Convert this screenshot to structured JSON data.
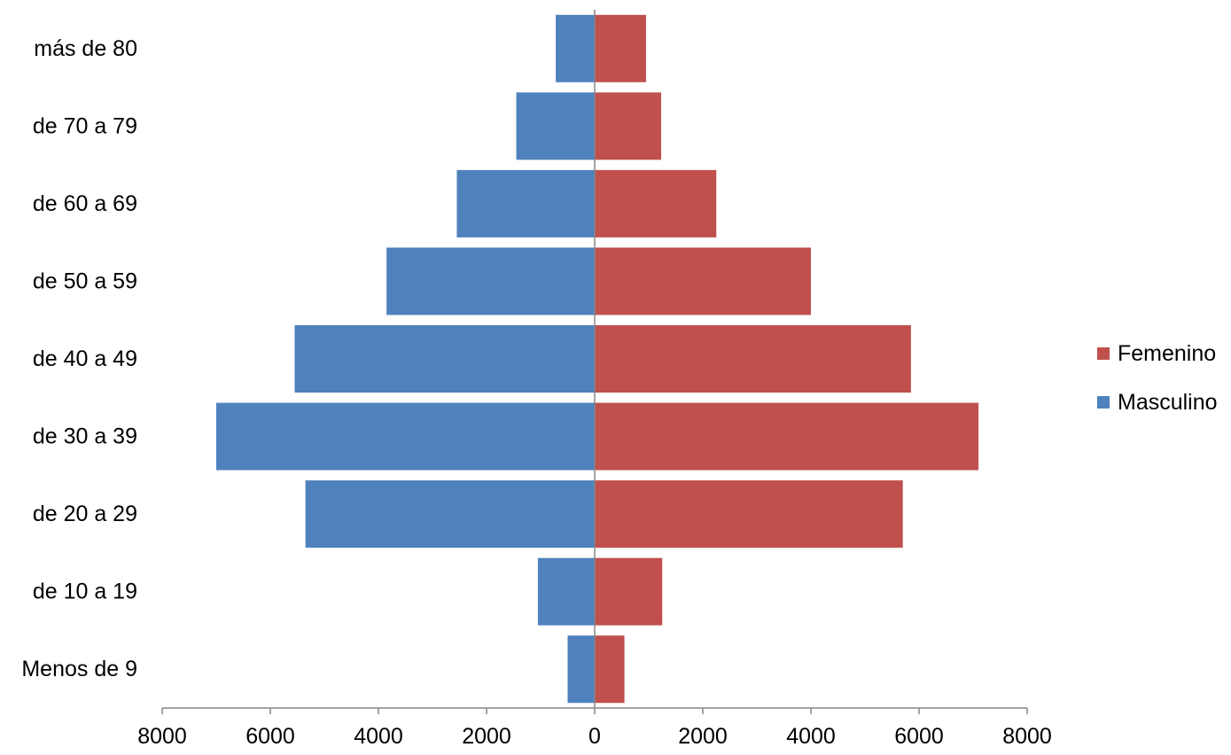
{
  "chart_data": {
    "type": "bar",
    "orientation": "horizontal",
    "subtype": "population-pyramid",
    "categories": [
      "Menos de 9",
      "de 10 a 19",
      "de 20 a 29",
      "de 30 a 39",
      "de 40 a 49",
      "de 50 a 59",
      "de 60 a 69",
      "de 70 a 79",
      "más de 80"
    ],
    "series": [
      {
        "name": "Masculino",
        "color": "#4F81BD",
        "side": "left",
        "values": [
          500,
          1050,
          5350,
          7000,
          5550,
          3850,
          2550,
          1450,
          720
        ]
      },
      {
        "name": "Femenino",
        "color": "#C0504D",
        "side": "right",
        "values": [
          550,
          1250,
          5700,
          7100,
          5850,
          4000,
          2250,
          1230,
          950
        ]
      }
    ],
    "xlim": [
      -8000,
      8000
    ],
    "x_ticks": [
      "8000",
      "6000",
      "4000",
      "2000",
      "0",
      "2000",
      "4000",
      "6000",
      "8000"
    ],
    "legend": {
      "position": "right",
      "entries": [
        "Femenino",
        "Masculino"
      ]
    },
    "grid": false,
    "title": "",
    "xlabel": "",
    "ylabel": ""
  }
}
